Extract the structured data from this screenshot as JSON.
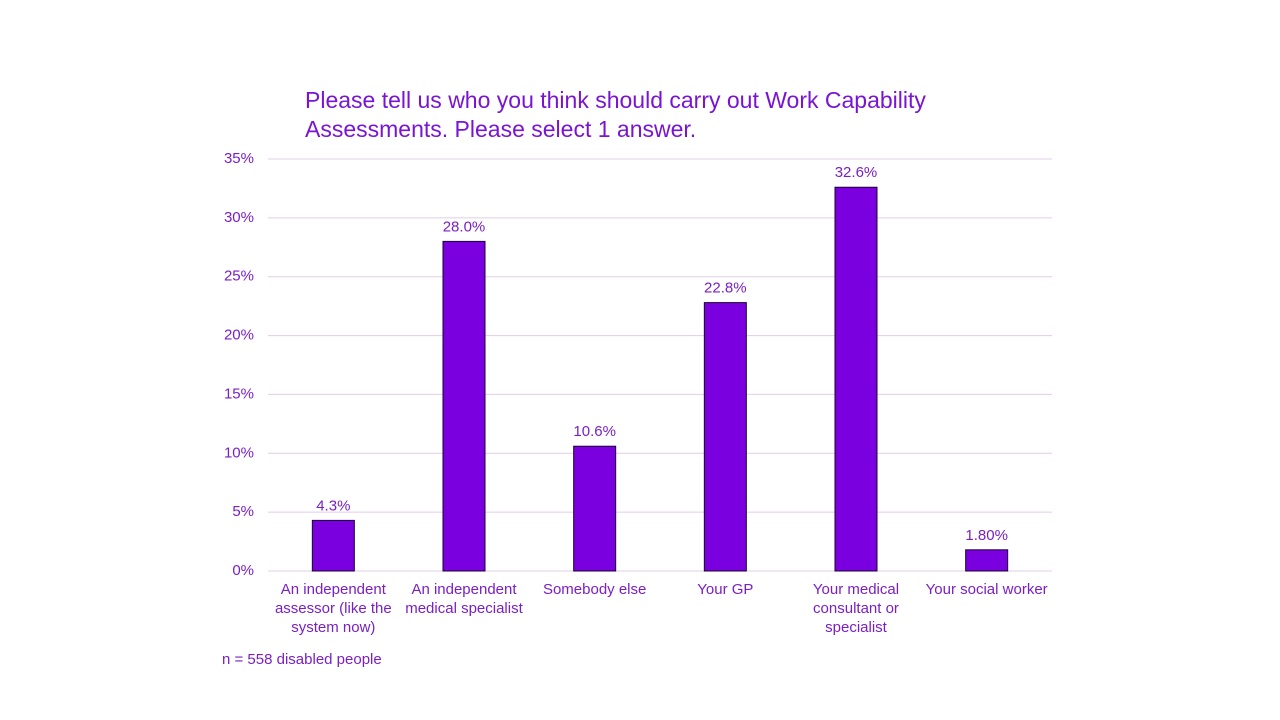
{
  "chart_data": {
    "type": "bar",
    "title": "Please tell us who you think should carry out Work Capability Assessments. Please select 1 answer.",
    "categories": [
      "An independent assessor (like the system now)",
      "An independent medical specialist",
      "Somebody else",
      "Your GP",
      "Your medical consultant or specialist",
      "Your social worker"
    ],
    "values": [
      4.3,
      28.0,
      10.6,
      22.8,
      32.6,
      1.8
    ],
    "value_labels": [
      "4.3%",
      "28.0%",
      "10.6%",
      "22.8%",
      "32.6%",
      "1.80%"
    ],
    "color": "#7b00e0",
    "ylim": [
      0,
      35
    ],
    "yticks": [
      {
        "value": 0,
        "label": "0%"
      },
      {
        "value": 5,
        "label": "5%"
      },
      {
        "value": 10,
        "label": "10%"
      },
      {
        "value": 15,
        "label": "15%"
      },
      {
        "value": 20,
        "label": "20%"
      },
      {
        "value": 25,
        "label": "25%"
      },
      {
        "value": 30,
        "label": "30%"
      },
      {
        "value": 35,
        "label": "35%"
      }
    ],
    "grid": true,
    "annotation": "n = 558 disabled people"
  }
}
